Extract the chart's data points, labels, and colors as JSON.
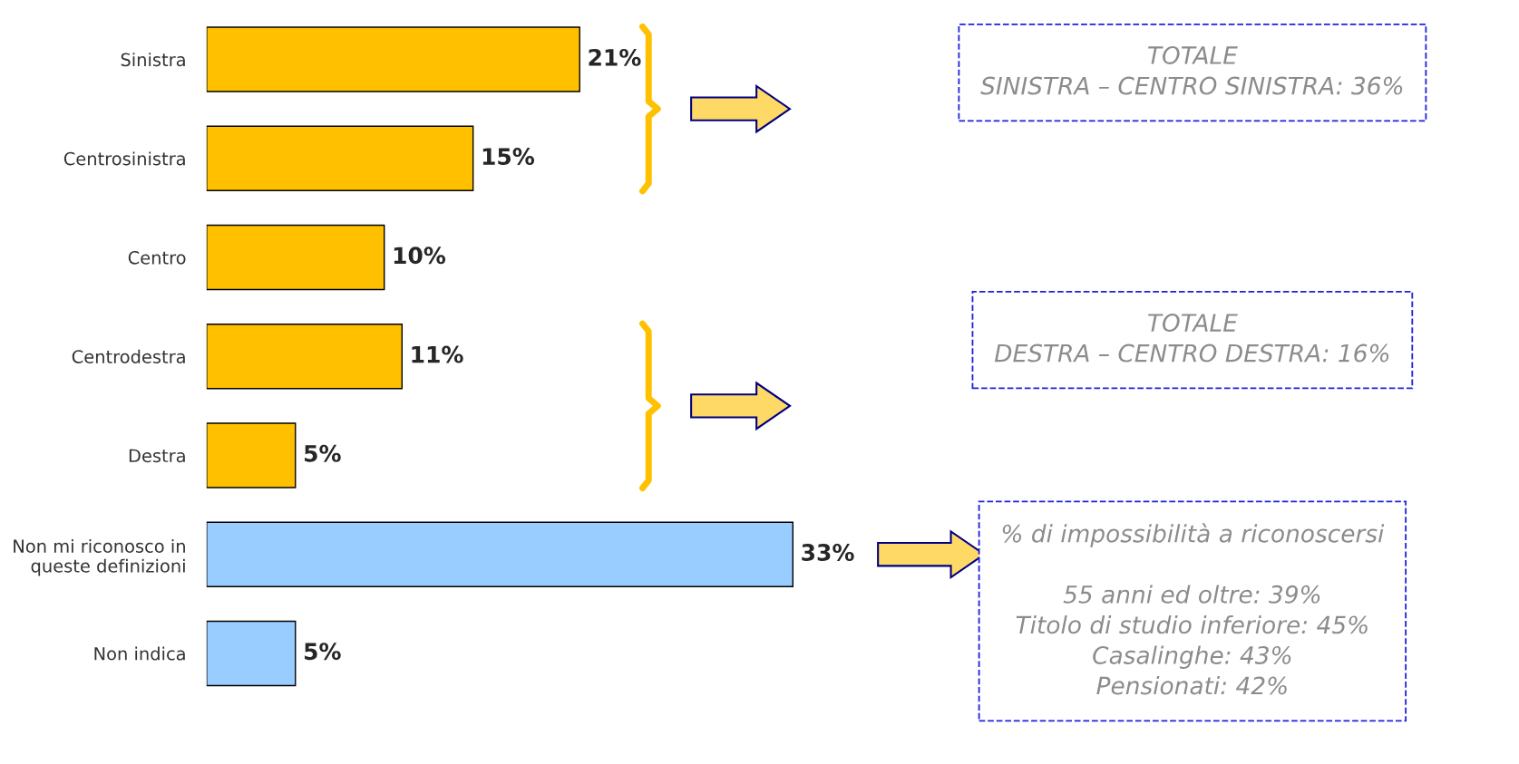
{
  "chart_data": {
    "type": "bar",
    "orientation": "horizontal",
    "categories": [
      "Sinistra",
      "Centrosinistra",
      "Centro",
      "Centrodestra",
      "Destra",
      "Non mi riconosco in\nqueste definizioni",
      "Non indica"
    ],
    "values": [
      21,
      15,
      10,
      11,
      5,
      33,
      5
    ],
    "colors": [
      "#ffc000",
      "#ffc000",
      "#ffc000",
      "#ffc000",
      "#ffc000",
      "#99ccff",
      "#99ccff"
    ],
    "value_labels": [
      "21%",
      "15%",
      "10%",
      "11%",
      "5%",
      "33%",
      "5%"
    ],
    "annotations": [
      "TOTALE\nSINISTRA – CENTRO SINISTRA: 36%",
      "TOTALE\nDESTRA – CENTRO DESTRA: 16%",
      "% di impossibilità a riconoscersi\n\n55 anni ed oltre: 39%\nTitolo di studio inferiore: 45%\nCasalinghe: 43%\nPensionati: 42%"
    ]
  }
}
